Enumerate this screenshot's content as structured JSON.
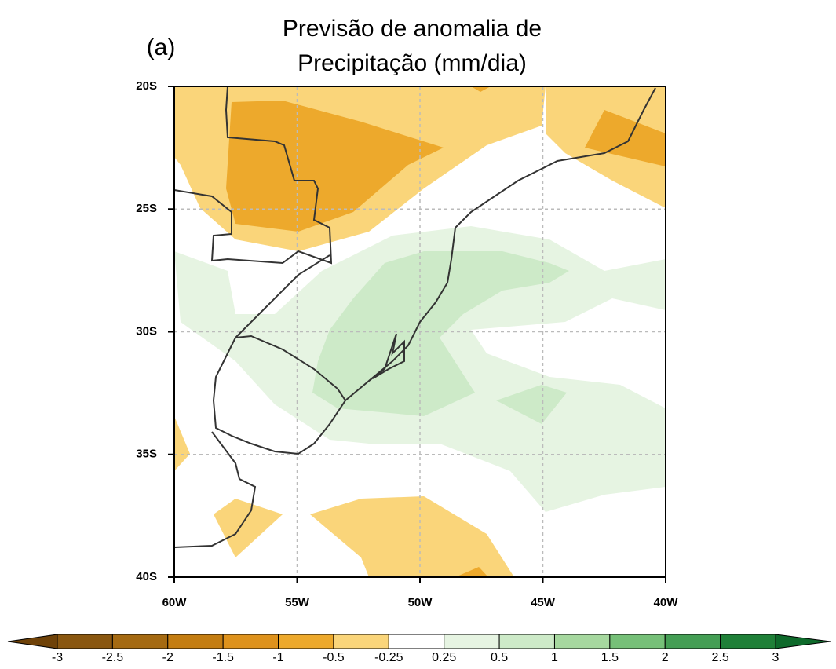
{
  "panel_label": "(a)",
  "title": [
    "Previsão de anomalia de",
    "Precipitação (mm/dia)"
  ],
  "map": {
    "xlim": [
      -60,
      -40
    ],
    "ylim": [
      -40,
      -20
    ],
    "xticks": [
      {
        "value": -60,
        "label": "60W"
      },
      {
        "value": -55,
        "label": "55W"
      },
      {
        "value": -50,
        "label": "50W"
      },
      {
        "value": -45,
        "label": "45W"
      },
      {
        "value": -40,
        "label": "40W"
      }
    ],
    "yticks": [
      {
        "value": -20,
        "label": "20S"
      },
      {
        "value": -25,
        "label": "25S"
      },
      {
        "value": -30,
        "label": "30S"
      },
      {
        "value": -35,
        "label": "35S"
      },
      {
        "value": -40,
        "label": "40S"
      }
    ],
    "grid": true
  },
  "colorbar": {
    "levels": [
      -3,
      -2.5,
      -2,
      -1.5,
      -1,
      -0.5,
      -0.25,
      0.25,
      0.5,
      1,
      1.5,
      2,
      2.5,
      3
    ],
    "colors": [
      "#6f4208",
      "#8a5710",
      "#a56a12",
      "#c47d12",
      "#de921c",
      "#eda92c",
      "#fad57a",
      "#ffffff",
      "#e6f4e2",
      "#cdeac8",
      "#a6d89f",
      "#76c078",
      "#449e54",
      "#1f8038",
      "#0e6a2b"
    ]
  }
}
